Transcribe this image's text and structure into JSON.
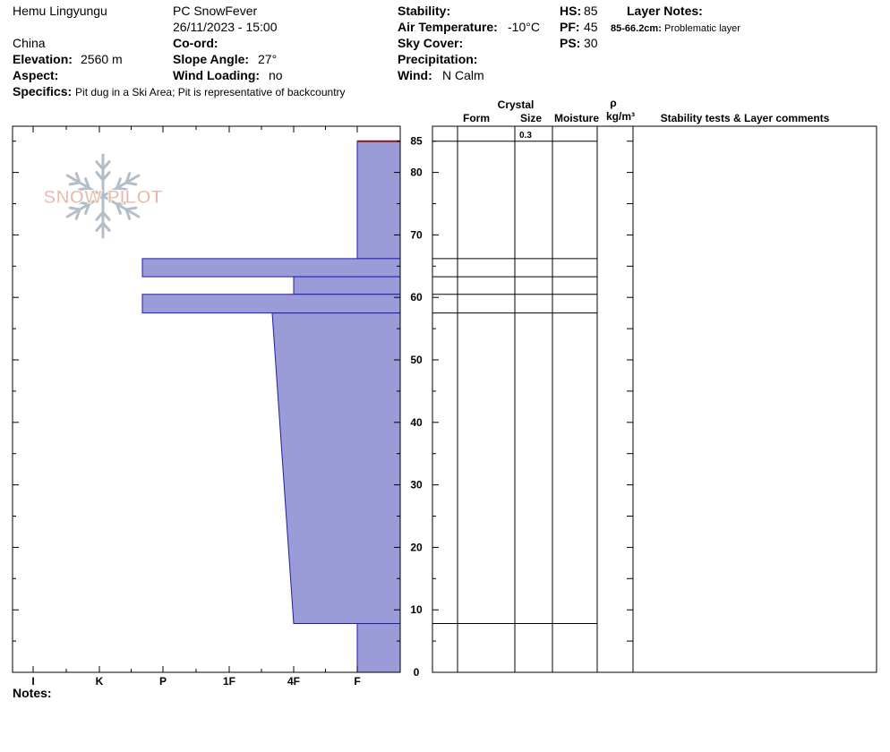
{
  "header": {
    "location": "Hemu Lingyungu",
    "observer": "PC SnowFever",
    "datetime": "26/11/2023 - 15:00",
    "country": "China",
    "elevation_label": "Elevation:",
    "elevation_value": "2560 m",
    "aspect_label": "Aspect:",
    "aspect_value": "",
    "coord_label": "Co-ord:",
    "coord_value": "",
    "slope_label": "Slope Angle:",
    "slope_value": "27°",
    "wind_loading_label": "Wind Loading:",
    "wind_loading_value": "no",
    "stability_label": "Stability:",
    "stability_value": "",
    "air_temp_label": "Air Temperature:",
    "air_temp_value": "-10°C",
    "sky_label": "Sky Cover:",
    "sky_value": "",
    "precip_label": "Precipitation:",
    "precip_value": "",
    "wind_label": "Wind:",
    "wind_value": "N Calm",
    "hs_label": "HS:",
    "hs_value": "85",
    "pf_label": "PF:",
    "pf_value": "45",
    "ps_label": "PS:",
    "ps_value": "30",
    "layer_notes_label": "Layer Notes:",
    "layer_note_range": "85-66.2cm:",
    "layer_note_text": "Problematic layer",
    "specifics_label": "Specifics:",
    "specifics_value": "Pit dug in a Ski Area; Pit is representative of backcountry"
  },
  "table_headers": {
    "crystal": "Crystal",
    "form": "Form",
    "size": "Size",
    "moisture": "Moisture",
    "rho": "ρ",
    "density_unit": "kg/m³",
    "stability_comments": "Stability tests & Layer comments"
  },
  "crystal_size_values": [
    "0.3"
  ],
  "notes_label": "Notes:",
  "logo_text": "SNOW PILOT",
  "colors": {
    "hardness_fill": "#9b9bd7",
    "hardness_stroke": "#1c1cb4",
    "surface_line": "#8b1a1a",
    "grid": "#000000",
    "logo_fill": "#e8b8a8",
    "logo_snowflake": "#b4bec8"
  },
  "chart_data": {
    "type": "area",
    "title": "",
    "xlabel": "",
    "ylabel": "",
    "y_unit": "cm",
    "ylim": [
      0,
      87
    ],
    "y_ticks": [
      0,
      10,
      20,
      30,
      40,
      50,
      60,
      70,
      80,
      85
    ],
    "x_categories": [
      "I",
      "K",
      "P",
      "1F",
      "4F",
      "F"
    ],
    "hardness_profile": [
      {
        "top": 85,
        "bottom": 66.2,
        "hardness": "F"
      },
      {
        "top": 66.2,
        "bottom": 63.3,
        "hardness": "P-"
      },
      {
        "top": 63.3,
        "bottom": 60.5,
        "hardness": "4F"
      },
      {
        "top": 60.5,
        "bottom": 57.5,
        "hardness": "P-"
      },
      {
        "top": 57.5,
        "bottom": 7.8,
        "hardness_top": "1F-",
        "hardness_bottom": "4F"
      },
      {
        "top": 7.8,
        "bottom": 0,
        "hardness": "F"
      }
    ],
    "layer_boundaries": [
      85,
      66.2,
      63.3,
      60.5,
      57.5,
      7.8
    ]
  }
}
